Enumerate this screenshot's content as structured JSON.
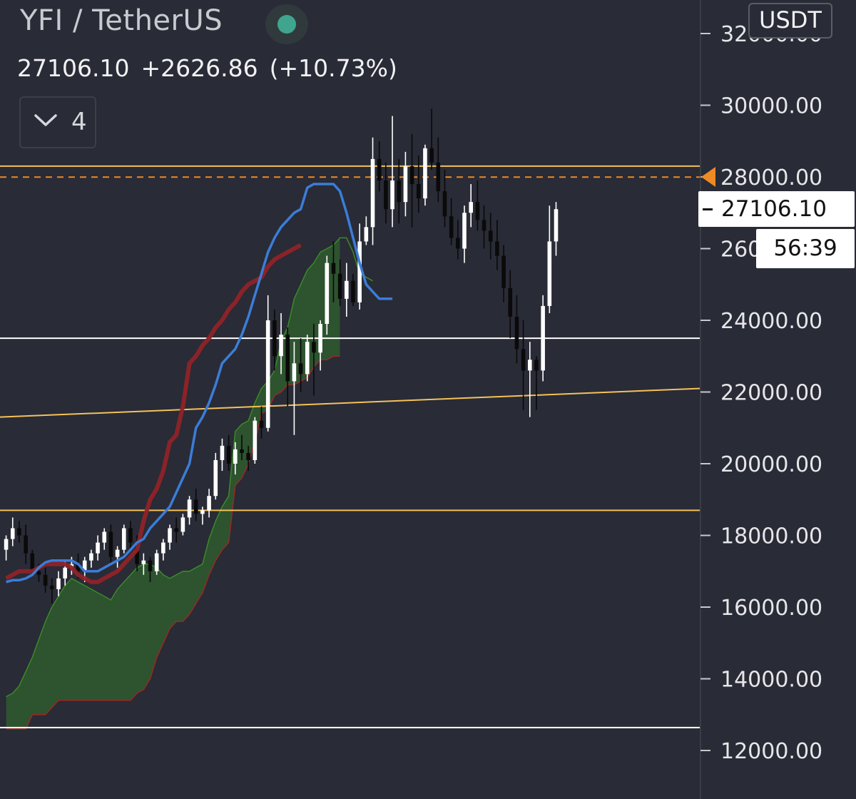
{
  "header": {
    "symbol": "YFI / TetherUS",
    "last_price": "27106.10",
    "change": "+2626.86",
    "change_pct": "(+10.73%)",
    "indicator_count": "4",
    "currency": "USDT",
    "live_color": "#3fa58f"
  },
  "price_tag": {
    "value": "27106.10",
    "countdown": "56:39"
  },
  "colors": {
    "background": "#292b36",
    "axis_text": "#e6e6ea",
    "up_candle": "#ffffff",
    "down_candle": "#0a0a0a",
    "conversion_line": "#3b7dd8",
    "base_line": "#8f2328",
    "cloud_fill": "#2e5a2e",
    "cloud_edge_lead_a": "#3a8a2a",
    "cloud_edge_lead_b": "#9a2a22",
    "level_line_yellow": "#f5c15a",
    "level_line_white": "#ffffff",
    "dashed_line": "#f08a24"
  },
  "chart_data": {
    "type": "candlestick",
    "title": "YFI / TetherUS",
    "ylabel": "USDT",
    "y_ticks": [
      12000,
      14000,
      16000,
      18000,
      20000,
      22000,
      24000,
      26000,
      28000,
      30000,
      32000
    ],
    "y_tick_labels": [
      "12000.00",
      "14000.00",
      "16000.00",
      "18000.00",
      "20000.00",
      "22000.00",
      "24000.00",
      "26000.00",
      "28000.00",
      "30000.00",
      "32000.00"
    ],
    "ylim": [
      11200,
      33000
    ],
    "bar_count": 107,
    "candles": [
      [
        17600,
        18000,
        17300,
        17900
      ],
      [
        17900,
        18500,
        17700,
        18200
      ],
      [
        18200,
        18400,
        17800,
        18000
      ],
      [
        18000,
        18300,
        17200,
        17500
      ],
      [
        17500,
        17600,
        16900,
        17000
      ],
      [
        17000,
        17200,
        16700,
        16900
      ],
      [
        16900,
        17100,
        16400,
        16600
      ],
      [
        16600,
        16800,
        16100,
        16500
      ],
      [
        16500,
        17000,
        16300,
        16800
      ],
      [
        16800,
        17300,
        16600,
        17100
      ],
      [
        17100,
        17400,
        16900,
        17200
      ],
      [
        17200,
        17500,
        16800,
        17000
      ],
      [
        17000,
        17400,
        16700,
        17300
      ],
      [
        17300,
        17600,
        17100,
        17500
      ],
      [
        17500,
        18000,
        17300,
        17800
      ],
      [
        17800,
        18200,
        17600,
        18100
      ],
      [
        18100,
        18300,
        17200,
        17400
      ],
      [
        17400,
        17700,
        17100,
        17600
      ],
      [
        17600,
        18300,
        17500,
        18200
      ],
      [
        18200,
        18400,
        17600,
        17800
      ],
      [
        17800,
        18000,
        17000,
        17200
      ],
      [
        17200,
        17500,
        16900,
        17300
      ],
      [
        17300,
        17400,
        16700,
        17000
      ],
      [
        17000,
        17600,
        16900,
        17500
      ],
      [
        17500,
        17900,
        17300,
        17800
      ],
      [
        17800,
        18300,
        17600,
        18200
      ],
      [
        18200,
        18500,
        17800,
        18100
      ],
      [
        18100,
        18600,
        18000,
        18500
      ],
      [
        18500,
        19100,
        18300,
        19000
      ],
      [
        19000,
        19300,
        18400,
        18600
      ],
      [
        18600,
        18800,
        18300,
        18700
      ],
      [
        18700,
        19300,
        18500,
        19100
      ],
      [
        19100,
        20300,
        19000,
        20100
      ],
      [
        20100,
        20700,
        19800,
        20500
      ],
      [
        20500,
        20800,
        19800,
        20000
      ],
      [
        20000,
        20600,
        19700,
        20400
      ],
      [
        20400,
        20800,
        20100,
        20300
      ],
      [
        20300,
        20500,
        19800,
        20100
      ],
      [
        20100,
        21300,
        20000,
        21200
      ],
      [
        21200,
        21600,
        20700,
        21000
      ],
      [
        21000,
        24700,
        20900,
        24000
      ],
      [
        24000,
        24300,
        22600,
        23000
      ],
      [
        23000,
        24200,
        22500,
        23600
      ],
      [
        23600,
        23800,
        21600,
        22300
      ],
      [
        22300,
        23400,
        20800,
        22800
      ],
      [
        22800,
        23500,
        22000,
        22500
      ],
      [
        22500,
        23600,
        22300,
        23400
      ],
      [
        23400,
        23900,
        21900,
        23100
      ],
      [
        23100,
        24000,
        22600,
        23900
      ],
      [
        23900,
        25800,
        23600,
        25600
      ],
      [
        25600,
        26200,
        24500,
        25300
      ],
      [
        25300,
        25700,
        24400,
        24600
      ],
      [
        24600,
        25600,
        24100,
        25100
      ],
      [
        25100,
        25300,
        24400,
        24500
      ],
      [
        24500,
        26700,
        24300,
        26200
      ],
      [
        26200,
        26900,
        26100,
        26600
      ],
      [
        26600,
        29100,
        26100,
        28500
      ],
      [
        28500,
        29000,
        27600,
        27900
      ],
      [
        27900,
        28400,
        26700,
        27100
      ],
      [
        27100,
        29700,
        26600,
        27900
      ],
      [
        27900,
        28500,
        26700,
        27300
      ],
      [
        27300,
        28700,
        26900,
        28300
      ],
      [
        28300,
        29200,
        26600,
        27800
      ],
      [
        27800,
        28600,
        27000,
        27400
      ],
      [
        27400,
        28900,
        27200,
        28800
      ],
      [
        28800,
        29900,
        28200,
        28400
      ],
      [
        28400,
        29100,
        27300,
        27600
      ],
      [
        27600,
        28200,
        26600,
        26900
      ],
      [
        26900,
        27400,
        26100,
        26300
      ],
      [
        26300,
        26800,
        25700,
        26000
      ],
      [
        26000,
        27200,
        25600,
        27000
      ],
      [
        27000,
        27800,
        26600,
        27300
      ],
      [
        27300,
        27900,
        26500,
        26800
      ],
      [
        26800,
        27200,
        26000,
        26500
      ],
      [
        26500,
        27000,
        25700,
        26200
      ],
      [
        26200,
        26800,
        25400,
        25800
      ],
      [
        25800,
        26100,
        24500,
        24900
      ],
      [
        24900,
        25400,
        23500,
        24100
      ],
      [
        24100,
        24700,
        22800,
        23200
      ],
      [
        23200,
        24000,
        21500,
        22600
      ],
      [
        22600,
        23400,
        21300,
        22900
      ],
      [
        22900,
        23000,
        21500,
        22600
      ],
      [
        22600,
        24700,
        22300,
        24400
      ],
      [
        24400,
        27200,
        24200,
        26200
      ],
      [
        26200,
        27300,
        25800,
        27100
      ]
    ],
    "series": [
      {
        "name": "Conversion Line",
        "values": [
          16700,
          16750,
          16750,
          16800,
          16900,
          17100,
          17250,
          17300,
          17300,
          17300,
          17300,
          17200,
          17000,
          17000,
          17000,
          17100,
          17200,
          17300,
          17400,
          17600,
          17800,
          17900,
          18200,
          18400,
          18600,
          18800,
          19200,
          19600,
          20000,
          21000,
          21300,
          21700,
          22200,
          22800,
          23000,
          23200,
          23600,
          24100,
          24700,
          25300,
          25900,
          26300,
          26600,
          26800,
          27000,
          27100,
          27700,
          27800,
          27800,
          27800,
          27800,
          27600,
          27000,
          26300,
          25600,
          25000,
          24800,
          24600,
          24600,
          24600
        ]
      },
      {
        "name": "Base Line",
        "values": [
          16800,
          16900,
          17000,
          17000,
          17000,
          17100,
          17200,
          17200,
          17200,
          17200,
          17100,
          16900,
          16800,
          16700,
          16700,
          16800,
          16900,
          17000,
          17200,
          17400,
          17600,
          18400,
          19000,
          19300,
          19800,
          20600,
          20800,
          21600,
          22800,
          23000,
          23300,
          23500,
          23800,
          24000,
          24300,
          24500,
          24800,
          25000,
          25100,
          25200,
          25500,
          25700,
          25800,
          25900,
          26000,
          26100
        ]
      },
      {
        "name": "Leading Span A",
        "values": [
          13500,
          13600,
          13800,
          14200,
          14600,
          15100,
          15600,
          16000,
          16300,
          16600,
          16800,
          16700,
          16600,
          16500,
          16400,
          16300,
          16200,
          16500,
          16700,
          16900,
          17100,
          17200,
          17200,
          17100,
          16900,
          16800,
          16900,
          17000,
          17000,
          17100,
          17200,
          17900,
          18400,
          18800,
          19100,
          20900,
          21100,
          21200,
          21700,
          22100,
          22300,
          22600,
          23400,
          23800,
          24600,
          25000,
          25400,
          25600,
          25900,
          26000,
          26100,
          26300,
          26300,
          25900,
          25300,
          25200,
          25100
        ]
      },
      {
        "name": "Leading Span B",
        "values": [
          12600,
          12600,
          12600,
          12600,
          13000,
          13000,
          13000,
          13200,
          13400,
          13400,
          13400,
          13400,
          13400,
          13400,
          13400,
          13400,
          13400,
          13400,
          13400,
          13400,
          13600,
          13700,
          14000,
          14600,
          15000,
          15400,
          15600,
          15600,
          15800,
          16100,
          16400,
          16900,
          17300,
          17600,
          17800,
          19400,
          19600,
          20000,
          20600,
          21400,
          21500,
          21900,
          22000,
          22200,
          22200,
          22300,
          22400,
          22700,
          22900,
          22900,
          23000,
          23000
        ]
      }
    ],
    "horizontal_levels": [
      28300,
      27995,
      23500,
      18700,
      12640
    ],
    "trendline": [
      [
        0,
        21300
      ],
      [
        107,
        22100
      ]
    ]
  }
}
